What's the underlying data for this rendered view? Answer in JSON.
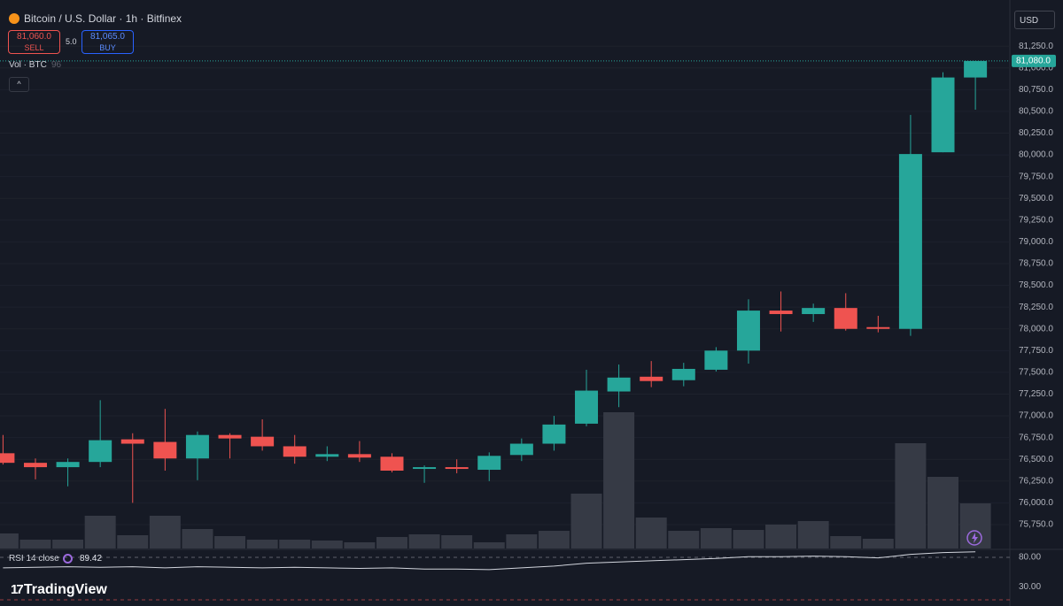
{
  "header": {
    "title": "Bitcoin / U.S. Dollar · 1h · Bitfinex",
    "sell_price": "81,060.0",
    "sell": "SELL",
    "spread": "5.0",
    "buy_price": "81,065.0",
    "buy": "BUY",
    "vol_label": "Vol · BTC",
    "vol_value": "96",
    "currency": "USD",
    "brand": "TradingView"
  },
  "chart_data": {
    "type": "candlestick",
    "up_color": "#26a69a",
    "down_color": "#ef5350",
    "volume_color": "#363a45",
    "grid": true,
    "open": [
      76570,
      76460,
      76410,
      76470,
      76730,
      76700,
      76510,
      76780,
      76760,
      76650,
      76530,
      76560,
      76530,
      76390,
      76410,
      76380,
      76550,
      76680,
      76910,
      77280,
      77450,
      77410,
      77530,
      77750,
      78210,
      78170,
      78240,
      78020,
      78000,
      80030,
      80890
    ],
    "high": [
      76780,
      76510,
      76510,
      77180,
      76800,
      77080,
      76820,
      76800,
      76960,
      76780,
      76650,
      76710,
      76570,
      76430,
      76500,
      76580,
      76740,
      77000,
      77530,
      77590,
      77630,
      77610,
      77790,
      78340,
      78430,
      78290,
      78410,
      78150,
      80460,
      80950,
      81080
    ],
    "low": [
      76440,
      76270,
      76190,
      76410,
      76000,
      76370,
      76260,
      76510,
      76600,
      76450,
      76480,
      76470,
      76350,
      76230,
      76340,
      76250,
      76480,
      76600,
      76880,
      77100,
      77330,
      77340,
      77510,
      77600,
      77970,
      78080,
      77980,
      77960,
      77920,
      80030,
      80520
    ],
    "close": [
      76460,
      76410,
      76470,
      76720,
      76680,
      76510,
      76780,
      76740,
      76650,
      76530,
      76560,
      76520,
      76370,
      76410,
      76390,
      76540,
      76680,
      76900,
      77290,
      77440,
      77400,
      77540,
      77750,
      78210,
      78170,
      78240,
      78000,
      78000,
      80010,
      80890,
      81080
    ],
    "volume": [
      17,
      10,
      10,
      37,
      15,
      37,
      22,
      14,
      10,
      10,
      9,
      7,
      13,
      16,
      15,
      7,
      16,
      20,
      62,
      154,
      35,
      20,
      23,
      21,
      27,
      31,
      14,
      11,
      119,
      81,
      51
    ],
    "ylim": [
      75475,
      81730
    ],
    "yticks": [
      {
        "value": 75750,
        "label": "75,750.0"
      },
      {
        "value": 76000,
        "label": "76,000.0"
      },
      {
        "value": 76250,
        "label": "76,250.0"
      },
      {
        "value": 76500,
        "label": "76,500.0"
      },
      {
        "value": 76750,
        "label": "76,750.0"
      },
      {
        "value": 77000,
        "label": "77,000.0"
      },
      {
        "value": 77250,
        "label": "77,250.0"
      },
      {
        "value": 77500,
        "label": "77,500.0"
      },
      {
        "value": 77750,
        "label": "77,750.0"
      },
      {
        "value": 78000,
        "label": "78,000.0"
      },
      {
        "value": 78250,
        "label": "78,250.0"
      },
      {
        "value": 78500,
        "label": "78,500.0"
      },
      {
        "value": 78750,
        "label": "78,750.0"
      },
      {
        "value": 79000,
        "label": "79,000.0"
      },
      {
        "value": 79250,
        "label": "79,250.0"
      },
      {
        "value": 79500,
        "label": "79,500.0"
      },
      {
        "value": 79750,
        "label": "79,750.0"
      },
      {
        "value": 80000,
        "label": "80,000.0"
      },
      {
        "value": 80250,
        "label": "80,250.0"
      },
      {
        "value": 80500,
        "label": "80,500.0"
      },
      {
        "value": 80750,
        "label": "80,750.0"
      },
      {
        "value": 81000,
        "label": "81,000.0"
      },
      {
        "value": 81250,
        "label": "81,250.0"
      }
    ],
    "last_price": {
      "value": 81080,
      "label": "81,080.0"
    },
    "rsi": {
      "name": "RSI 14 close",
      "color": "#d1d4dc",
      "current": 89.42,
      "values": [
        62,
        63,
        64,
        63,
        64,
        62,
        64,
        63,
        62,
        63,
        62,
        61,
        62,
        60,
        60,
        59,
        62,
        65,
        70,
        72,
        74,
        76,
        78,
        81,
        81,
        82,
        81,
        79,
        85,
        88,
        89.42
      ],
      "ylim": [
        -3,
        92
      ],
      "yticks": [
        {
          "value": 80,
          "label": "80.00"
        },
        {
          "value": 30,
          "label": "30.00"
        }
      ]
    }
  }
}
